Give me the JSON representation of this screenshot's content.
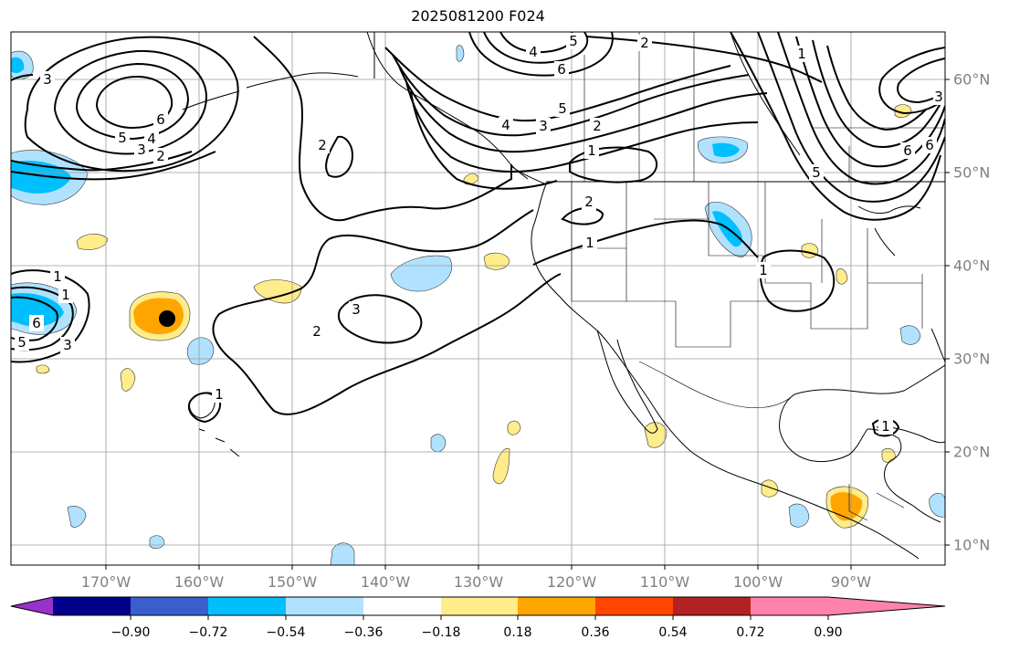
{
  "title": "2025081200 F024",
  "lon_labels": [
    "170°W",
    "160°W",
    "150°W",
    "140°W",
    "130°W",
    "120°W",
    "110°W",
    "100°W",
    "90°W"
  ],
  "lat_labels": [
    "60°N",
    "50°N",
    "40°N",
    "30°N",
    "20°N",
    "10°N"
  ],
  "colorbar": {
    "colors": [
      "#9932cc",
      "#00008b",
      "#3a5fcd",
      "#00bfff",
      "#b0e2ff",
      "#ffffff",
      "#ffec8b",
      "#ffa500",
      "#ff4500",
      "#b22222",
      "#ff82ab"
    ],
    "tick_labels": [
      "−0.90",
      "−0.72",
      "−0.54",
      "−0.36",
      "−0.18",
      "0.18",
      "0.36",
      "0.54",
      "0.72",
      "0.90"
    ]
  },
  "contour_labels": [
    "3",
    "5",
    "6",
    "3",
    "4",
    "2",
    "4",
    "5",
    "6",
    "2",
    "4",
    "3",
    "5",
    "2",
    "2",
    "1",
    "2",
    "1",
    "1",
    "2",
    "3",
    "1",
    "1",
    "6",
    "5",
    "3",
    "1",
    "6",
    "5",
    "1",
    "3",
    "6",
    "1"
  ]
}
